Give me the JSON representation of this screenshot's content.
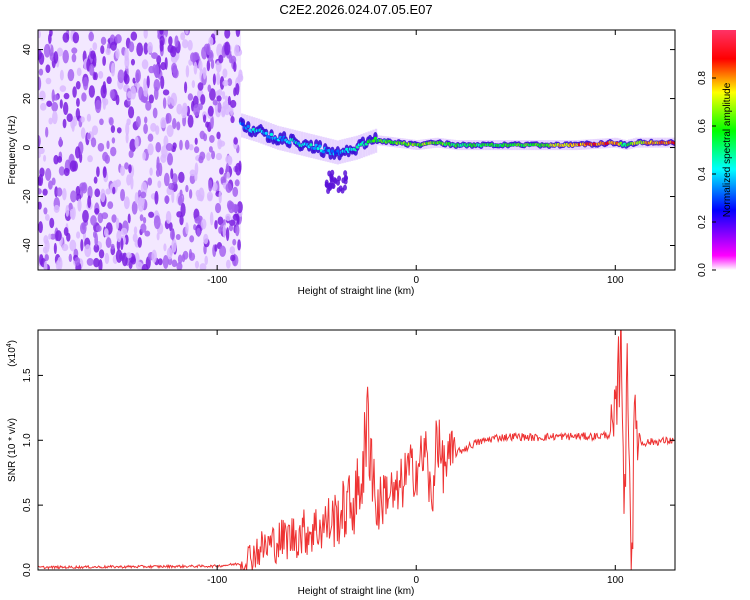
{
  "page": {
    "title": "C2E2.2026.024.07.05.E07"
  },
  "chart_data": [
    {
      "type": "heatmap",
      "title": "C2E2.2026.024.07.05.E07",
      "xlabel": "Height of straight line (km)",
      "ylabel": "Frequency (Hz)",
      "xlim": [
        -190,
        130
      ],
      "ylim": [
        -50,
        48
      ],
      "xticks": [
        -100,
        0,
        100
      ],
      "xtick_labels": [
        "-100",
        "0",
        "100"
      ],
      "yticks": [
        -40,
        -20,
        0,
        20,
        40
      ],
      "ytick_labels": [
        "-40",
        "-20",
        "0",
        "20",
        "40"
      ],
      "grid": false,
      "noise_region_x": [
        -190,
        -88
      ],
      "signal_trend": {
        "x": [
          -88,
          -80,
          -70,
          -60,
          -50,
          -40,
          -30,
          -20,
          -10,
          0,
          10,
          20,
          40,
          60,
          80,
          100,
          105,
          110,
          130
        ],
        "frequency_hz": [
          9,
          7,
          4,
          2,
          0,
          -2,
          0,
          3,
          2,
          1,
          2,
          1,
          1,
          1,
          1,
          2,
          1,
          2,
          2
        ],
        "amplitude": [
          0.35,
          0.4,
          0.38,
          0.42,
          0.4,
          0.35,
          0.45,
          0.55,
          0.6,
          0.65,
          0.62,
          0.55,
          0.55,
          0.6,
          0.8,
          0.85,
          0.5,
          0.7,
          0.85
        ]
      },
      "colorbar": {
        "label": "Normalized spectral amplitude",
        "range": [
          0,
          1
        ],
        "ticks": [
          0,
          0.2,
          0.4,
          0.6,
          0.8
        ],
        "tick_labels": [
          "0.0",
          "0.2",
          "0.4",
          "0.6",
          "0.8"
        ],
        "colormap": [
          "#ffffff",
          "#ff00ff",
          "#0000ff",
          "#00ffff",
          "#00ff00",
          "#ffff00",
          "#ff0000",
          "#ff3366"
        ]
      }
    },
    {
      "type": "line",
      "xlabel": "Height of straight line (km)",
      "ylabel": "SNR (10 * v/v)",
      "scale_label": "(x10",
      "scale_exponent": "4",
      "xlim": [
        -190,
        130
      ],
      "ylim": [
        0,
        1.85
      ],
      "xticks": [
        -100,
        0,
        100
      ],
      "xtick_labels": [
        "-100",
        "0",
        "100"
      ],
      "yticks": [
        0,
        0.5,
        1.0,
        1.5
      ],
      "ytick_labels": [
        "0.0",
        "0.5",
        "1.0",
        "1.5"
      ],
      "grid": false,
      "series": [
        {
          "name": "SNR",
          "color": "#ee3333",
          "x": [
            -190,
            -100,
            -88,
            -80,
            -70,
            -60,
            -50,
            -40,
            -30,
            -25,
            -24,
            -20,
            -15,
            -10,
            -5,
            0,
            5,
            8,
            10,
            13,
            20,
            30,
            40,
            50,
            60,
            70,
            80,
            90,
            95,
            100,
            103,
            105,
            106,
            108,
            110,
            113,
            120,
            130
          ],
          "y": [
            0.02,
            0.03,
            0.05,
            0.15,
            0.22,
            0.27,
            0.32,
            0.4,
            0.55,
            0.95,
            1.22,
            0.45,
            0.62,
            0.55,
            0.75,
            0.78,
            0.92,
            0.4,
            1.1,
            0.8,
            0.9,
            0.98,
            1.02,
            1.03,
            1.02,
            1.03,
            1.03,
            1.03,
            1.04,
            1.05,
            1.85,
            0.25,
            1.9,
            0.05,
            1.2,
            0.98,
            0.99,
            1.0
          ]
        }
      ]
    }
  ]
}
